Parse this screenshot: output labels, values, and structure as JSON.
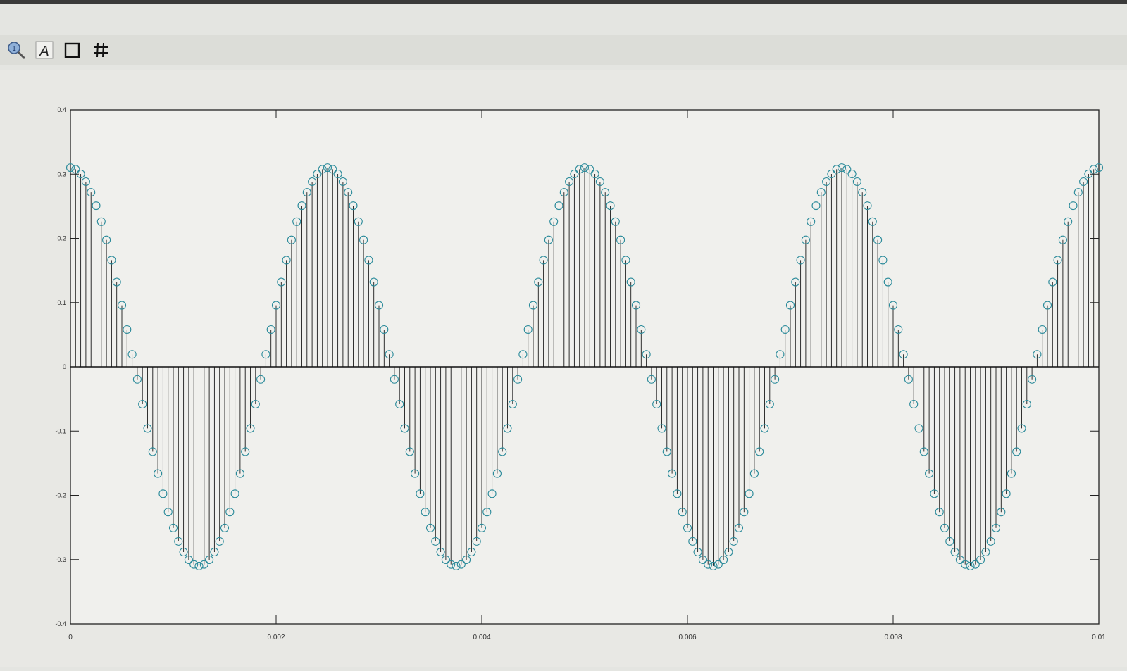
{
  "toolbar": {
    "icons": [
      "zoom-icon",
      "text-icon",
      "box-icon",
      "grid-icon"
    ]
  },
  "chart_data": {
    "type": "stem",
    "x_range": [
      0,
      0.01
    ],
    "ylim": [
      -0.4,
      0.4
    ],
    "xticks": [
      "0",
      "0.002",
      "0.004",
      "0.006",
      "0.008",
      "0.01"
    ],
    "xtick_values": [
      0,
      0.002,
      0.004,
      0.006,
      0.008,
      0.01
    ],
    "yticks": [
      "0.4",
      "0.3",
      "0.2",
      "0.1",
      "0",
      "-0.1",
      "-0.2",
      "-0.3",
      "-0.4"
    ],
    "ytick_values": [
      0.4,
      0.3,
      0.2,
      0.1,
      0,
      -0.1,
      -0.2,
      -0.3,
      -0.4
    ],
    "series": [
      {
        "marker": "circle",
        "amplitude": 0.31,
        "frequency_hz": 400,
        "phase": "cosine",
        "sample_interval": 5e-05,
        "num_samples": 201
      }
    ],
    "colors": {
      "stem": "#1a1a1a",
      "marker": "#2a8a9a",
      "axis": "#222222"
    },
    "grid": false
  }
}
